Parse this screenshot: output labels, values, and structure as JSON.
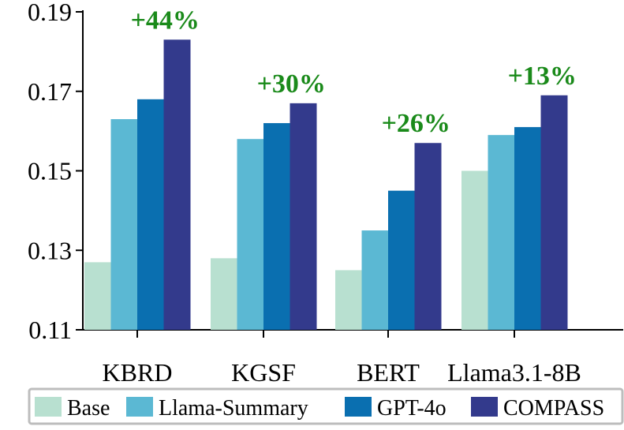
{
  "chart_data": {
    "type": "bar",
    "title": "",
    "xlabel": "",
    "ylabel": "",
    "categories": [
      "KBRD",
      "KGSF",
      "BERT",
      "Llama3.1-8B"
    ],
    "series": [
      {
        "name": "Base",
        "color": "#b8e0d0",
        "values": [
          0.127,
          0.128,
          0.125,
          0.15
        ]
      },
      {
        "name": "Llama-Summary",
        "color": "#5bb8d3",
        "values": [
          0.163,
          0.158,
          0.135,
          0.159
        ]
      },
      {
        "name": "GPT-4o",
        "color": "#0a6fb0",
        "values": [
          0.168,
          0.162,
          0.145,
          0.161
        ]
      },
      {
        "name": "COMPASS",
        "color": "#333a8c",
        "values": [
          0.183,
          0.167,
          0.157,
          0.169
        ]
      }
    ],
    "annotations": [
      "+44%",
      "+30%",
      "+26%",
      "+13%"
    ],
    "annotation_color": "#1a8a1a",
    "ylim": [
      0.11,
      0.19
    ],
    "yticks": [
      "0.11",
      "0.13",
      "0.15",
      "0.17",
      "0.19"
    ],
    "legend_position": "bottom",
    "grid": false
  }
}
